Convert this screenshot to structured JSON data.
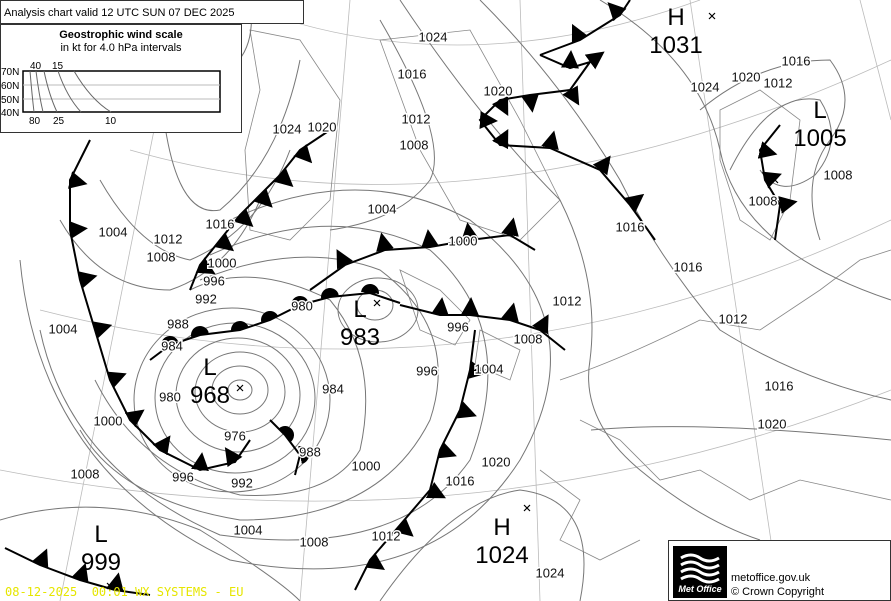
{
  "header": {
    "title": "Analysis chart valid 12 UTC SUN 07  DEC 2025"
  },
  "wind_scale": {
    "title": "Geostrophic wind scale",
    "subtitle": "in kt for 4.0 hPa intervals",
    "latitudes": [
      "70N",
      "60N",
      "50N",
      "40N"
    ],
    "top_labels": [
      "40",
      "15"
    ],
    "bottom_labels": [
      "80",
      "25",
      "10"
    ]
  },
  "pressure_centres": [
    {
      "type": "H",
      "value": "1031"
    },
    {
      "type": "L",
      "value": "1005"
    },
    {
      "type": "L",
      "value": "983"
    },
    {
      "type": "L",
      "value": "968"
    },
    {
      "type": "L",
      "value": "999"
    },
    {
      "type": "H",
      "value": "1024"
    }
  ],
  "isobar_labels": [
    "1024",
    "1016",
    "1020",
    "1012",
    "1008",
    "1004",
    "1000",
    "1024",
    "1020",
    "1016",
    "1012",
    "1008",
    "1008",
    "1016",
    "1016",
    "1012",
    "1012",
    "1016",
    "1020",
    "1008",
    "1004",
    "996",
    "996",
    "1024",
    "1020",
    "1016",
    "1012",
    "1008",
    "1004",
    "1000",
    "996",
    "992",
    "988",
    "984",
    "980",
    "976",
    "980",
    "984",
    "988",
    "992",
    "996",
    "1000",
    "1004",
    "1008",
    "1000",
    "1004",
    "1008",
    "1012",
    "1016",
    "1020",
    "1024"
  ],
  "footer": {
    "timestamp": "08-12-2025  00:01",
    "system": "WX SYSTEMS - EU",
    "site": "metoffice.gov.uk",
    "copyright": "© Crown Copyright",
    "logo_text": "Met Office"
  },
  "colors": {
    "isobar": "#777777",
    "front": "#000000",
    "stamp": "#e6e600"
  }
}
